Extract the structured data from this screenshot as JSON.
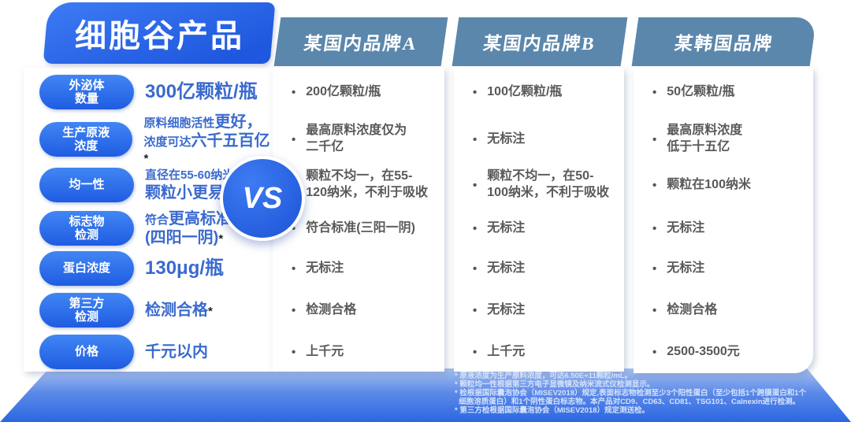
{
  "title": "细胞谷产品",
  "vs_label": "VS",
  "competitor_headers": [
    "某国内品牌A",
    "某国内品牌B",
    "某韩国品牌"
  ],
  "bullet": "•",
  "rows": [
    {
      "label": "外泌体\n数量",
      "product": {
        "big": "300亿颗粒/瓶"
      },
      "a": "200亿颗粒/瓶",
      "b": "100亿颗粒/瓶",
      "k": "50亿颗粒/瓶"
    },
    {
      "label": "生产原液\n浓度",
      "product": {
        "l1_sm": "原料细胞活性",
        "l1_lg": "更好，",
        "l2_sm": "浓度可达",
        "l2_lg": "六千五百亿",
        "star": "*"
      },
      "a": "最高原料浓度仅为\n二千亿",
      "b": "无标注",
      "k": "最高原料浓度\n低于十五亿"
    },
    {
      "label": "均一性",
      "product": {
        "l1_sm": "直径在55-60纳米",
        "star": "*",
        "l1_tail": "，",
        "l2_lg": "颗粒小更易吸收"
      },
      "a": "颗粒不均一，在55-\n120纳米，不利于吸收",
      "b": "颗粒不均一，在50-\n100纳米，不利于吸收",
      "k": "颗粒在100纳米"
    },
    {
      "label": "标志物\n检测",
      "product": {
        "l1_sm": "符合",
        "l1_lg": "更高标准",
        "l2_lg": "(四阳一阴)",
        "star": "*"
      },
      "a": "符合标准(三阳一阴)",
      "b": "无标注",
      "k": "无标注"
    },
    {
      "label": "蛋白浓度",
      "product": {
        "big": "130μg/瓶"
      },
      "a": "无标注",
      "b": "无标注",
      "k": "无标注"
    },
    {
      "label": "第三方\n检测",
      "product": {
        "lg": "检测合格",
        "star": "*"
      },
      "a": "检测合格",
      "b": "无标注",
      "k": "检测合格"
    },
    {
      "label": "价格",
      "product": {
        "lg": "千元以内"
      },
      "a": "上千元",
      "b": "上千元",
      "k": "2500-3500元"
    }
  ],
  "footnotes": [
    "* 原液浓度为生产原料浓度，可达6.50E+11颗粒/mL。",
    "* 颗粒均一性根据第三方电子显微镜及纳米流式仪检测显示。",
    "* 检根据国际囊泡协会（MISEV2018）规定,表面标志物检测至少3个阳性蛋白（至少包括1个跨膜蛋白和1个",
    "  细胞溶质蛋白）和1个阴性蛋白标志物。本产品对CD9、CD63、CD81、TSG101、Calnexin进行检测。",
    "* 第三方检根据国际囊泡协会（MISEV2018）规定测送检。"
  ],
  "colors": {
    "primary_blue": "#2565e8",
    "steel_blue": "#5b87ac",
    "value_blue": "#3a6ace",
    "competitor_text_gray": "#595959",
    "base_gradient_top": "#a7c1f0",
    "base_gradient_bottom": "#2b67e2"
  }
}
